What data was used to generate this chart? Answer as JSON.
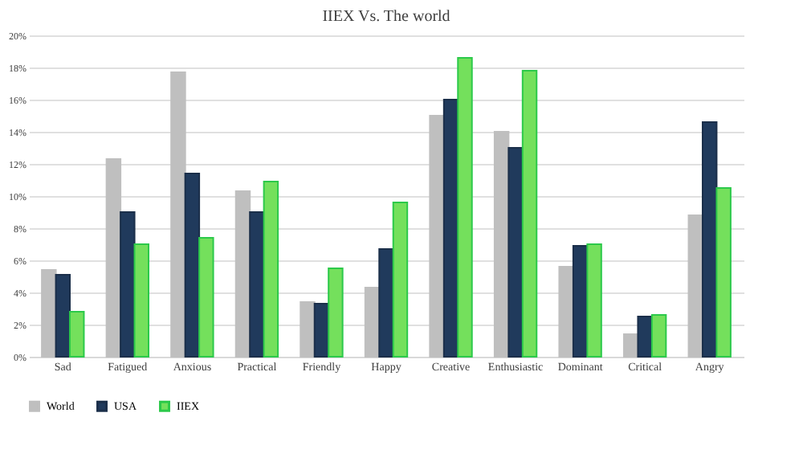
{
  "chart_data": {
    "type": "bar",
    "title": "IIEX Vs. The world",
    "categories": [
      "Sad",
      "Fatigued",
      "Anxious",
      "Practical",
      "Friendly",
      "Happy",
      "Creative",
      "Enthusiastic",
      "Dominant",
      "Critical",
      "Angry"
    ],
    "series": [
      {
        "name": "World",
        "color": "#bfbfbf",
        "values": [
          5.4,
          12.3,
          17.7,
          10.3,
          3.4,
          4.3,
          15.0,
          14.0,
          5.6,
          1.4,
          8.8
        ]
      },
      {
        "name": "USA",
        "color": "#203a5c",
        "values": [
          5.1,
          9.0,
          11.4,
          9.0,
          3.3,
          6.7,
          16.0,
          13.0,
          6.9,
          2.5,
          14.6
        ]
      },
      {
        "name": "IIEX",
        "color": "#74e05c",
        "values": [
          2.8,
          7.0,
          7.4,
          10.9,
          5.5,
          9.6,
          18.6,
          17.8,
          7.0,
          2.6,
          10.5
        ]
      }
    ],
    "ylim": [
      0,
      20
    ],
    "yticks": [
      {
        "value": 0,
        "label": "0%"
      },
      {
        "value": 2,
        "label": "2%"
      },
      {
        "value": 4,
        "label": "4%"
      },
      {
        "value": 6,
        "label": "6%"
      },
      {
        "value": 8,
        "label": "8%"
      },
      {
        "value": 10,
        "label": "10%"
      },
      {
        "value": 12,
        "label": "12%"
      },
      {
        "value": 14,
        "label": "14%"
      },
      {
        "value": 16,
        "label": "16%"
      },
      {
        "value": 18,
        "label": "18%"
      },
      {
        "value": 20,
        "label": "20%"
      }
    ],
    "grid": "y",
    "legend": "bottom"
  }
}
